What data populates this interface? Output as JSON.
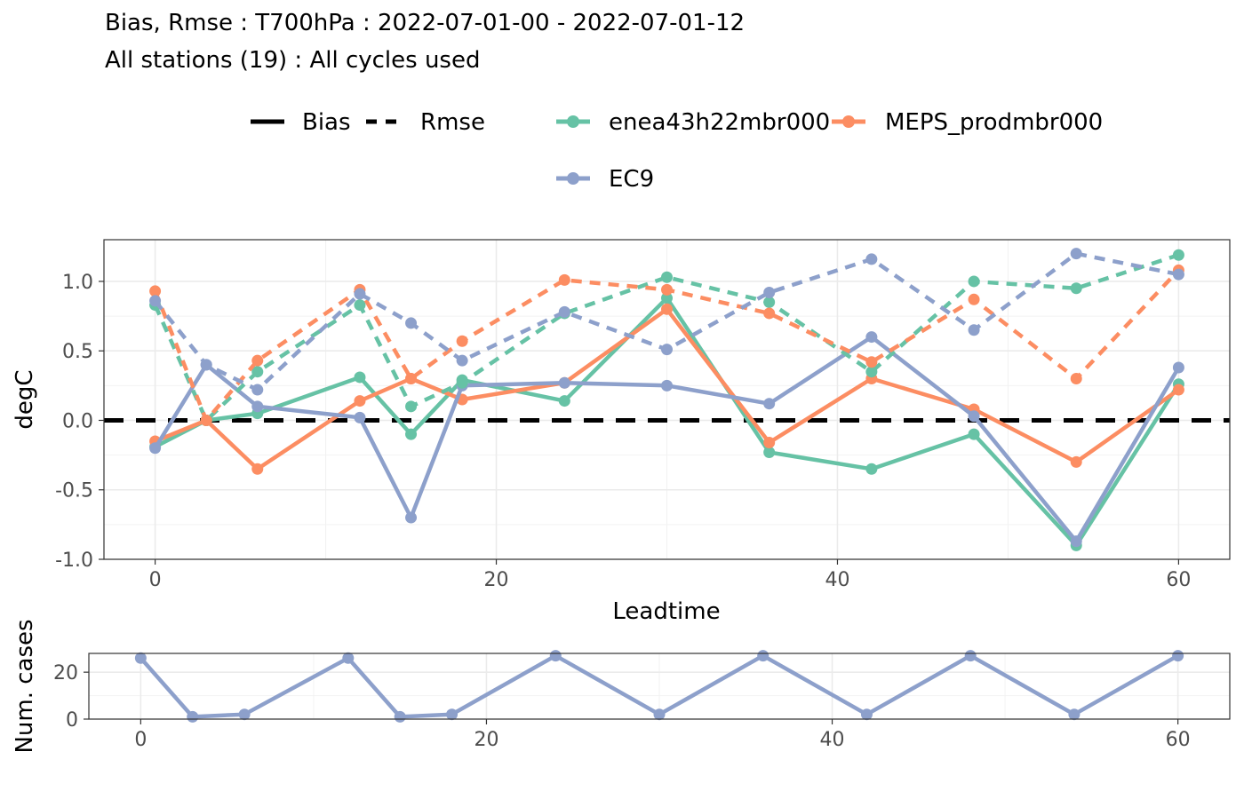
{
  "title": "Bias, Rmse : T700hPa : 2022-07-01-00 - 2022-07-01-12",
  "subtitle": "All stations (19) : All cycles used",
  "legend": {
    "linetypes": [
      {
        "label": "Bias",
        "style": "solid"
      },
      {
        "label": "Rmse",
        "style": "dashed"
      }
    ],
    "models": [
      {
        "label": "enea43h22mbr000",
        "color": "#66c2a5"
      },
      {
        "label": "MEPS_prodmbr000",
        "color": "#fc8d62"
      },
      {
        "label": "EC9",
        "color": "#8da0cb"
      }
    ]
  },
  "chart_data": [
    {
      "type": "line",
      "xlabel": "Leadtime",
      "ylabel": "degC",
      "xlim": [
        -3,
        63
      ],
      "ylim": [
        -1.0,
        1.3
      ],
      "xticks": [
        0,
        20,
        40,
        60
      ],
      "yticks": [
        -1.0,
        -0.5,
        0.0,
        0.5,
        1.0
      ],
      "ytick_labels": [
        "-1.0",
        "-0.5",
        "0.0",
        "0.5",
        "1.0"
      ],
      "grid": true,
      "hline": 0.0,
      "series": [
        {
          "name": "enea43h22mbr000",
          "stat": "Bias",
          "color": "#66c2a5",
          "x": [
            0,
            3,
            6,
            12,
            15,
            18,
            24,
            30,
            36,
            42,
            48,
            54,
            60
          ],
          "y": [
            -0.19,
            0.0,
            0.05,
            0.31,
            -0.1,
            0.29,
            0.14,
            0.88,
            -0.23,
            -0.35,
            -0.1,
            -0.9,
            0.26
          ]
        },
        {
          "name": "MEPS_prodmbr000",
          "stat": "Bias",
          "color": "#fc8d62",
          "x": [
            0,
            3,
            6,
            12,
            15,
            18,
            24,
            30,
            36,
            42,
            48,
            54,
            60
          ],
          "y": [
            -0.15,
            0.0,
            -0.35,
            0.14,
            0.3,
            0.15,
            0.27,
            0.8,
            -0.16,
            0.3,
            0.08,
            -0.3,
            0.22
          ]
        },
        {
          "name": "EC9",
          "stat": "Bias",
          "color": "#8da0cb",
          "x": [
            0,
            3,
            6,
            12,
            15,
            18,
            24,
            30,
            36,
            42,
            48,
            54,
            60
          ],
          "y": [
            -0.2,
            0.4,
            0.1,
            0.02,
            -0.7,
            0.25,
            0.27,
            0.25,
            0.12,
            0.6,
            0.03,
            -0.87,
            0.38
          ]
        },
        {
          "name": "enea43h22mbr000",
          "stat": "Rmse",
          "color": "#66c2a5",
          "x": [
            0,
            3,
            6,
            12,
            15,
            18,
            24,
            30,
            36,
            42,
            48,
            54,
            60
          ],
          "y": [
            0.83,
            0.0,
            0.35,
            0.83,
            0.1,
            0.27,
            0.77,
            1.03,
            0.85,
            0.35,
            1.0,
            0.95,
            1.19
          ]
        },
        {
          "name": "MEPS_prodmbr000",
          "stat": "Rmse",
          "color": "#fc8d62",
          "x": [
            0,
            3,
            6,
            12,
            15,
            18,
            24,
            30,
            36,
            42,
            48,
            54,
            60
          ],
          "y": [
            0.93,
            0.0,
            0.43,
            0.94,
            0.3,
            0.57,
            1.01,
            0.94,
            0.77,
            0.42,
            0.87,
            0.3,
            1.08
          ]
        },
        {
          "name": "EC9",
          "stat": "Rmse",
          "color": "#8da0cb",
          "x": [
            0,
            3,
            6,
            12,
            15,
            18,
            24,
            30,
            36,
            42,
            48,
            54,
            60
          ],
          "y": [
            0.86,
            0.4,
            0.22,
            0.91,
            0.7,
            0.43,
            0.78,
            0.51,
            0.92,
            1.16,
            0.65,
            1.2,
            1.05
          ]
        }
      ]
    },
    {
      "type": "line",
      "xlabel": "",
      "ylabel": "Num. cases",
      "xlim": [
        -3,
        63
      ],
      "ylim": [
        0,
        28
      ],
      "xticks": [
        0,
        20,
        40,
        60
      ],
      "yticks": [
        0,
        20
      ],
      "ytick_labels": [
        "0",
        "20"
      ],
      "grid": true,
      "series": [
        {
          "color": "#8da0cb",
          "x": [
            0,
            3,
            6,
            12,
            15,
            18,
            24,
            30,
            36,
            42,
            48,
            54,
            60
          ],
          "y": [
            26,
            1,
            2,
            26,
            1,
            2,
            27,
            2,
            27,
            2,
            27,
            2,
            27
          ]
        }
      ]
    }
  ]
}
